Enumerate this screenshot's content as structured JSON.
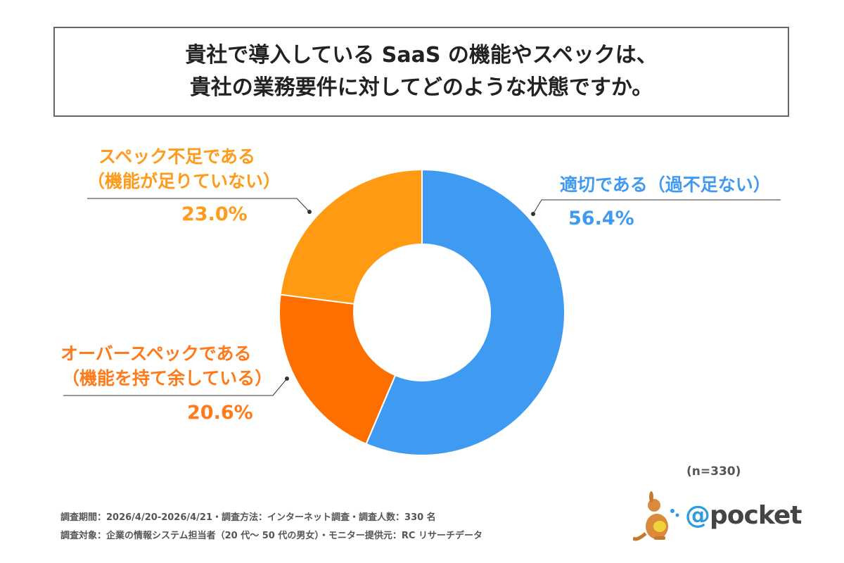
{
  "title": {
    "line1": "貴社で導入している SaaS の機能やスペックは、",
    "line2": "貴社の業務要件に対してどのような状態ですか。"
  },
  "chart_data": {
    "type": "pie",
    "donut": true,
    "slices": [
      {
        "label_line1": "適切である（過不足ない）",
        "label_line2": "",
        "value": 56.4,
        "value_label": "56.4%",
        "color": "#3f9bf2"
      },
      {
        "label_line1": "オーバースペックである",
        "label_line2": "（機能を持て余している）",
        "value": 20.6,
        "value_label": "20.6%",
        "color": "#ff6f00"
      },
      {
        "label_line1": "スペック不足である",
        "label_line2": "（機能が足りていない）",
        "value": 23.0,
        "value_label": "23.0%",
        "color": "#ff9a12"
      }
    ]
  },
  "sample_size": "(n=330)",
  "footer": {
    "line1": "調査期間：2026/4/20-2026/4/21・調査方法：インターネット調査・調査人数：330 名",
    "line2": "調査対象：企業の情報システム担当者（20 代～ 50 代の男女）・モニター提供元：RC リサーチデータ"
  },
  "logo": {
    "at": "@",
    "text": "pocket",
    "icon": "kangaroo-icon"
  }
}
